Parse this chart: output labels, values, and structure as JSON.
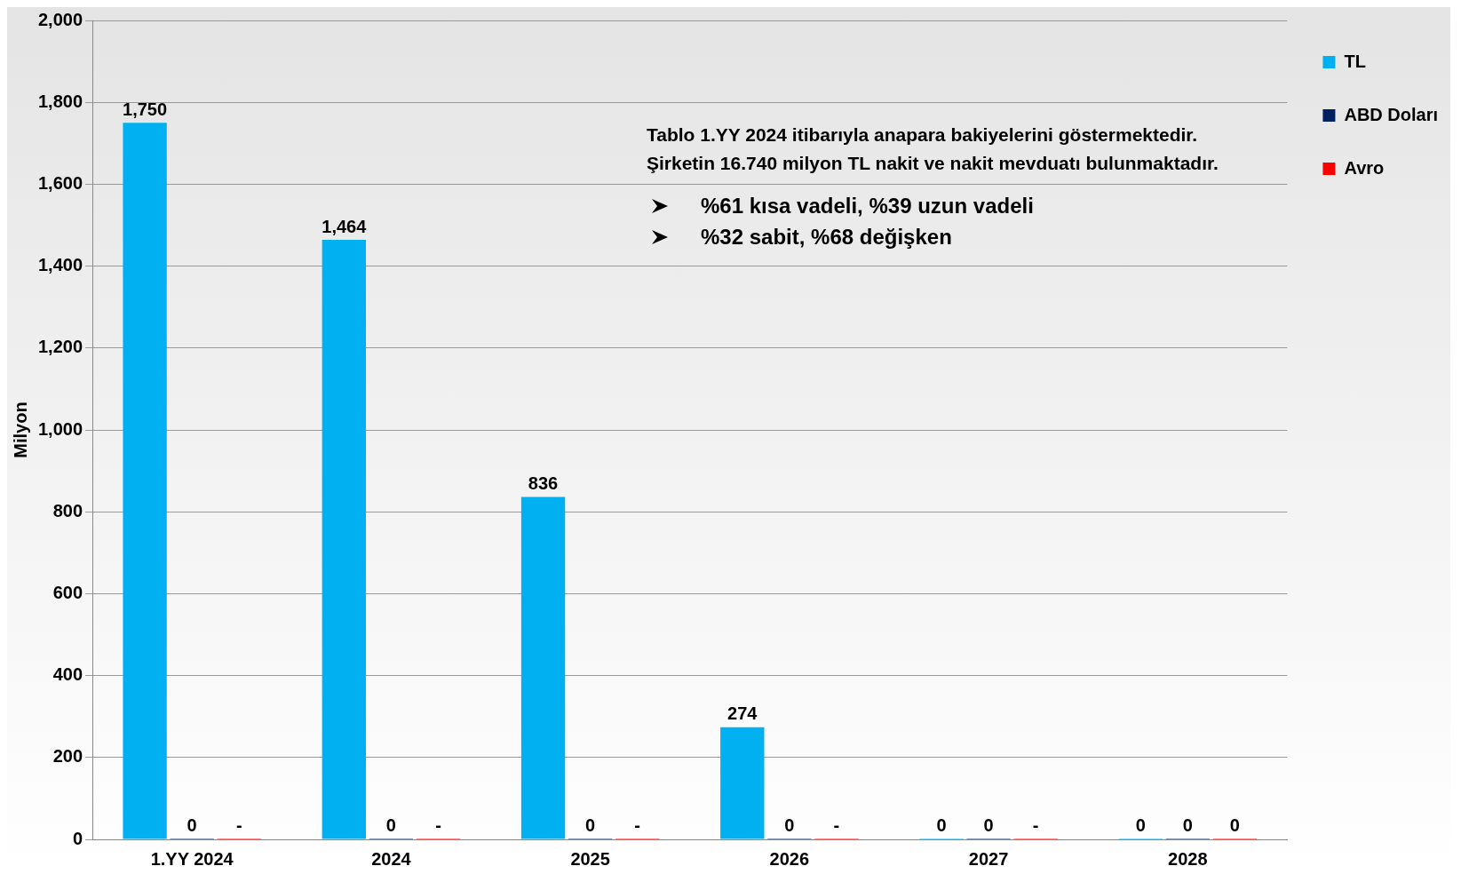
{
  "chart_data": {
    "type": "bar",
    "ylabel": "Milyon",
    "categories": [
      "1.YY 2024",
      "2024",
      "2025",
      "2026",
      "2027",
      "2028"
    ],
    "series": [
      {
        "name": "TL",
        "color": "#00b0f0",
        "values": [
          1750,
          1464,
          836,
          274,
          0,
          0
        ],
        "value_labels": [
          "1,750",
          "1,464",
          "836",
          "274",
          "0",
          "0"
        ]
      },
      {
        "name": "ABD Doları",
        "color": "#002060",
        "values": [
          0,
          0,
          0,
          0,
          0,
          0
        ],
        "value_labels": [
          "0",
          "0",
          "0",
          "0",
          "0",
          "0"
        ]
      },
      {
        "name": "Avro",
        "color": "#ff0000",
        "values": [
          0,
          0,
          0,
          0,
          0,
          0
        ],
        "value_labels": [
          "-",
          "-",
          "-",
          "-",
          "-",
          "0"
        ]
      }
    ],
    "ylim": [
      0,
      2000
    ],
    "yticks": [
      0,
      {
        "value": 200,
        "label": "200"
      },
      {
        "value": 400,
        "label": "400"
      },
      {
        "value": 600,
        "label": "600"
      },
      {
        "value": 800,
        "label": "800"
      },
      {
        "value": 1000,
        "label": "1,000"
      },
      {
        "value": 1200,
        "label": "1,200"
      },
      {
        "value": 1400,
        "label": "1,400"
      },
      {
        "value": 1600,
        "label": "1,600"
      },
      {
        "value": 1800,
        "label": "1,800"
      },
      {
        "value": 2000,
        "label": "2,000"
      }
    ],
    "grid": "y",
    "legend": "top right",
    "annotations": [
      "Tablo 1.YY 2024 itibarıyla anapara bakiyelerini göstermektedir.\nŞirketin 16.740 milyon TL nakit ve nakit mevduatı bulunmaktadır.",
      "%61 kısa vadeli, %39 uzun vadeli",
      "%32 sabit, %68 değişken"
    ]
  }
}
